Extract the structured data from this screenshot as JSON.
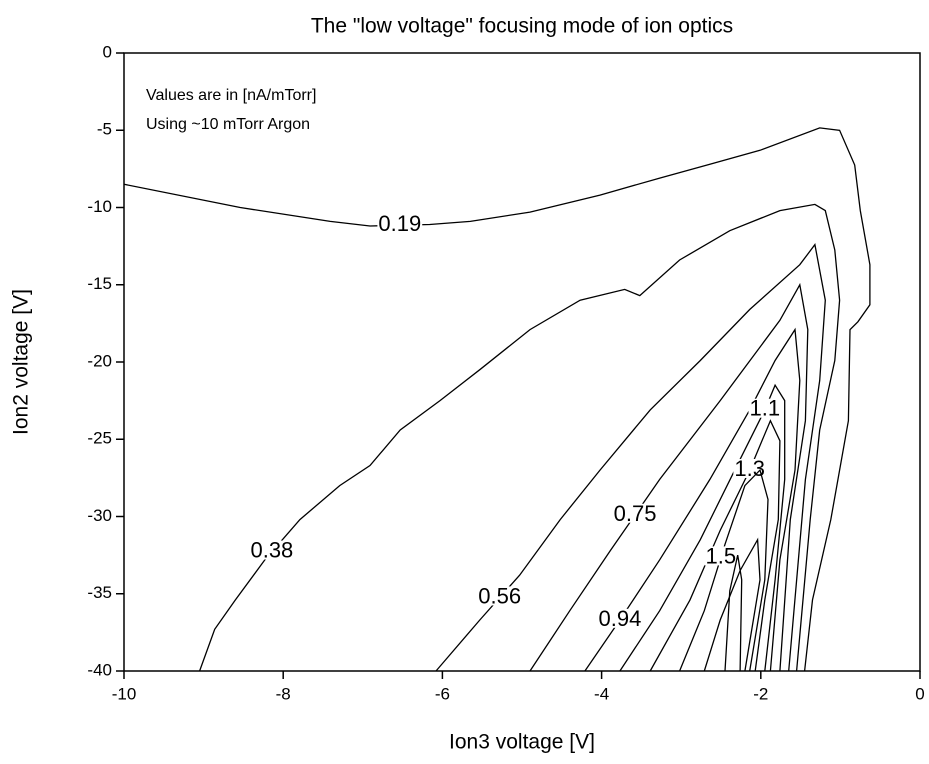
{
  "chart_data": {
    "type": "contour",
    "title": "The \"low voltage\" focusing mode of ion optics",
    "xlabel": "Ion3 voltage [V]",
    "ylabel": "Ion2 voltage [V]",
    "annotations": [
      "Values are in [nA/mTorr]",
      "Using ~10 mTorr Argon"
    ],
    "xlim": [
      -10,
      0
    ],
    "xticks": [
      -10,
      -8,
      -6,
      -4,
      -2,
      0
    ],
    "ylim": [
      -40,
      0
    ],
    "yticks": [
      -40,
      -35,
      -30,
      -25,
      -20,
      -15,
      -10,
      -5,
      0
    ],
    "color": "#000000",
    "contours": [
      {
        "level": 0.19,
        "x": [
          -10,
          -8.54,
          -7.41,
          -6.91,
          -6.16,
          -5.65,
          -4.9,
          -4.02,
          -3.27,
          -2.64,
          -2.01,
          -1.26,
          -1.01,
          -0.82,
          -0.75,
          -0.63,
          -0.63,
          -0.78,
          -0.88,
          -0.9,
          -1.12,
          -1.35,
          -1.45
        ],
        "y": [
          -8.5,
          -10.0,
          -10.9,
          -11.2,
          -11.1,
          -10.9,
          -10.3,
          -9.2,
          -8.1,
          -7.2,
          -6.3,
          -4.85,
          -5.0,
          -7.25,
          -10.2,
          -13.7,
          -16.3,
          -17.4,
          -17.9,
          -23.8,
          -30.2,
          -35.4,
          -40
        ]
      },
      {
        "level": 0.38,
        "x": [
          -9.05,
          -8.86,
          -8.6,
          -8.23,
          -7.79,
          -7.29,
          -6.91,
          -6.53,
          -6.03,
          -5.53,
          -4.9,
          -4.27,
          -3.71,
          -3.52,
          -3.02,
          -2.39,
          -1.76,
          -1.32,
          -1.19,
          -1.07,
          -1.01,
          -1.07,
          -1.26,
          -1.38,
          -1.55
        ],
        "y": [
          -40,
          -37.3,
          -35.4,
          -32.8,
          -30.2,
          -28.0,
          -26.7,
          -24.4,
          -22.5,
          -20.5,
          -17.9,
          -16.0,
          -15.3,
          -15.7,
          -13.4,
          -11.5,
          -10.2,
          -9.8,
          -10.2,
          -12.75,
          -16.0,
          -19.9,
          -24.4,
          -30.2,
          -40
        ]
      },
      {
        "level": 0.56,
        "x": [
          -6.08,
          -5.53,
          -5.03,
          -4.52,
          -4.02,
          -3.39,
          -2.76,
          -2.14,
          -1.51,
          -1.32,
          -1.19,
          -1.26,
          -1.44,
          -1.65
        ],
        "y": [
          -40,
          -36.7,
          -33.8,
          -30.2,
          -27.0,
          -23.1,
          -19.9,
          -16.6,
          -13.7,
          -12.4,
          -16.0,
          -21.2,
          -27.6,
          -40
        ]
      },
      {
        "level": 0.75,
        "x": [
          -4.9,
          -4.4,
          -3.89,
          -3.27,
          -2.51,
          -1.76,
          -1.51,
          -1.41,
          -1.44,
          -1.63,
          -1.76
        ],
        "y": [
          -40,
          -36.1,
          -32.2,
          -27.6,
          -22.5,
          -17.3,
          -15.0,
          -17.9,
          -23.8,
          -30.2,
          -40
        ]
      },
      {
        "level": 0.94,
        "x": [
          -4.21,
          -3.77,
          -3.27,
          -2.64,
          -2.14,
          -1.82,
          -1.57,
          -1.51,
          -1.57,
          -1.76,
          -1.88
        ],
        "y": [
          -40,
          -36.7,
          -32.8,
          -27.6,
          -23.1,
          -19.9,
          -17.9,
          -21.2,
          -27.0,
          -32.8,
          -40
        ]
      },
      {
        "level": 1.1,
        "x": [
          -3.77,
          -3.27,
          -2.76,
          -2.26,
          -1.95,
          -1.82,
          -1.7,
          -1.7,
          -1.82,
          -1.95
        ],
        "y": [
          -40,
          -36.1,
          -31.5,
          -26.3,
          -23.1,
          -21.5,
          -22.5,
          -27.6,
          -34.1,
          -40
        ]
      },
      {
        "level": 1.3,
        "x": [
          -3.39,
          -2.89,
          -2.51,
          -2.14,
          -1.88,
          -1.76,
          -1.78,
          -1.95,
          -2.07
        ],
        "y": [
          -40,
          -35.4,
          -30.9,
          -27.0,
          -23.8,
          -25.1,
          -30.2,
          -35.4,
          -40
        ]
      },
      {
        "level": 1.5,
        "x": [
          -3.02,
          -2.71,
          -2.45,
          -2.2,
          -2.01,
          -1.91,
          -1.95,
          -2.14
        ],
        "y": [
          -40,
          -36.1,
          -31.8,
          -28.0,
          -27.0,
          -28.9,
          -34.1,
          -40
        ]
      },
      {
        "x": [
          -2.71,
          -2.51,
          -2.26,
          -2.04,
          -2.01,
          -2.2
        ],
        "y": [
          -40,
          -36.7,
          -33.5,
          -31.5,
          -34.1,
          -40
        ]
      },
      {
        "x": [
          -2.45,
          -2.39,
          -2.29,
          -2.24,
          -2.26
        ],
        "y": [
          -40,
          -34.8,
          -32.5,
          -34.1,
          -40
        ]
      }
    ]
  }
}
